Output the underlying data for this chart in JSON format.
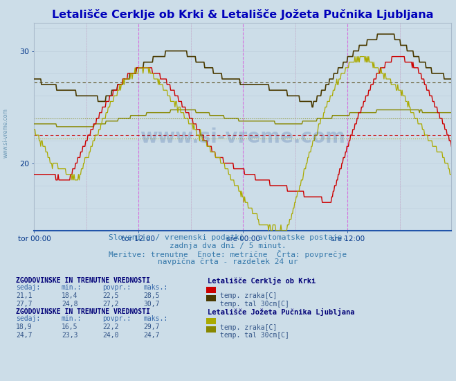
{
  "title": "Letališče Cerklje ob Krki & Letališče Jožeta Pučnika Ljubljana",
  "bg_color": "#ccdde8",
  "plot_bg_color": "#ccdde8",
  "title_color": "#0000bb",
  "title_fontsize": 11.5,
  "subtitle_lines": [
    "Slovenija / vremenski podatki - avtomatske postaje.",
    "zadnja dva dni / 5 minut.",
    "Meritve: trenutne  Enote: metrične  Črta: povprečje",
    "navpična črta - razdelek 24 ur"
  ],
  "subtitle_color": "#3377aa",
  "subtitle_fontsize": 8,
  "xtick_labels": [
    "tor 00:00",
    "tor 12:00",
    "sre 00:00",
    "sre 12:00"
  ],
  "yticks": [
    20,
    30
  ],
  "ylim_low": 14.0,
  "ylim_high": 32.5,
  "color_s1_temp": "#cc0000",
  "color_s1_tal": "#4a3a00",
  "color_s2_temp": "#aaaa00",
  "color_s2_tal": "#888800",
  "avg_s1_temp": 22.5,
  "avg_s1_tal": 27.2,
  "avg_s2_temp": 22.2,
  "avg_s2_tal": 24.0,
  "stats_header": "ZGODOVINSKE IN TRENUTNE VREDNOSTI",
  "stats_col_headers": [
    "sedaj:",
    "min.:",
    "povpr.:",
    "maks.:"
  ],
  "stats_s1_row1": [
    "21,1",
    "18,4",
    "22,5",
    "28,5"
  ],
  "stats_s1_row2": [
    "27,7",
    "24,8",
    "27,2",
    "30,7"
  ],
  "stats_s2_row1": [
    "18,9",
    "16,5",
    "22,2",
    "29,7"
  ],
  "stats_s2_row2": [
    "24,7",
    "23,3",
    "24,0",
    "24,7"
  ],
  "legend_station1": "Letališče Cerklje ob Krki",
  "legend_station2": "Letališče Jožeta Pučnika Ljubljana",
  "legend_s1_line1": "temp. zraka[C]",
  "legend_s1_line2": "temp. tal 30cm[C]",
  "legend_s2_line1": "temp. zraka[C]",
  "legend_s2_line2": "temp. tal 30cm[C]",
  "n_points": 576
}
